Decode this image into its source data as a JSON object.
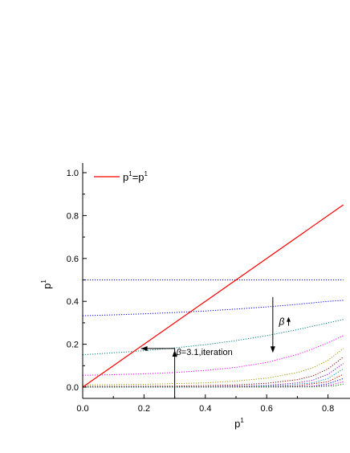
{
  "chart_data": {
    "type": "line",
    "xlabel": "p",
    "xlabel_sup": "1",
    "ylabel": "p",
    "ylabel_sup": "1",
    "xlim": [
      0,
      0.85
    ],
    "ylim": [
      -0.05,
      1.05
    ],
    "x_ticks": [
      0.0,
      0.2,
      0.4,
      0.6,
      0.8
    ],
    "x_tick_labels": [
      "0.0",
      "0.2",
      "0.4",
      "0.6",
      "0.8"
    ],
    "y_ticks": [
      0.0,
      0.2,
      0.4,
      0.6,
      0.8,
      1.0
    ],
    "y_tick_labels": [
      "0.0",
      "0.2",
      "0.4",
      "0.6",
      "0.8",
      "1.0"
    ],
    "legend": {
      "placement": "top-left",
      "entry": {
        "base": "p",
        "sup1": "1",
        "eq": "=p",
        "sup2": "1",
        "color": "#ff0000"
      }
    },
    "identity_line": {
      "color": "#ff0000",
      "x": [
        0,
        0.85
      ],
      "y": [
        0,
        0.85
      ]
    },
    "series": [
      {
        "color": "#0000cc",
        "x": [
          0,
          0.2,
          0.4,
          0.6,
          0.7,
          0.8,
          0.85
        ],
        "y": [
          0.5,
          0.5,
          0.5,
          0.5,
          0.5,
          0.5,
          0.5
        ]
      },
      {
        "color": "#0000ff",
        "x": [
          0,
          0.1,
          0.2,
          0.3,
          0.4,
          0.5,
          0.6,
          0.7,
          0.8,
          0.85
        ],
        "y": [
          0.333,
          0.337,
          0.342,
          0.348,
          0.355,
          0.364,
          0.374,
          0.386,
          0.4,
          0.405
        ]
      },
      {
        "color": "#008080",
        "x": [
          0,
          0.1,
          0.2,
          0.3,
          0.4,
          0.5,
          0.6,
          0.7,
          0.8,
          0.85
        ],
        "y": [
          0.151,
          0.16,
          0.17,
          0.183,
          0.198,
          0.217,
          0.24,
          0.268,
          0.3,
          0.315
        ]
      },
      {
        "color": "#ff00ff",
        "x": [
          0,
          0.1,
          0.2,
          0.3,
          0.4,
          0.5,
          0.6,
          0.7,
          0.75,
          0.8,
          0.85
        ],
        "y": [
          0.055,
          0.058,
          0.062,
          0.068,
          0.078,
          0.092,
          0.115,
          0.152,
          0.178,
          0.207,
          0.24
        ]
      },
      {
        "color": "#999900",
        "x": [
          0,
          0.2,
          0.4,
          0.5,
          0.6,
          0.7,
          0.75,
          0.8,
          0.85
        ],
        "y": [
          0.01,
          0.013,
          0.02,
          0.028,
          0.042,
          0.068,
          0.09,
          0.125,
          0.18
        ]
      },
      {
        "color": "#800000",
        "x": [
          0,
          0.3,
          0.5,
          0.6,
          0.7,
          0.75,
          0.8,
          0.85
        ],
        "y": [
          0.003,
          0.005,
          0.01,
          0.018,
          0.035,
          0.052,
          0.085,
          0.14
        ]
      },
      {
        "color": "#8800cc",
        "x": [
          0,
          0.4,
          0.6,
          0.7,
          0.75,
          0.8,
          0.85
        ],
        "y": [
          0.001,
          0.002,
          0.008,
          0.02,
          0.032,
          0.06,
          0.11
        ]
      },
      {
        "color": "#0088cc",
        "x": [
          0,
          0.5,
          0.65,
          0.75,
          0.8,
          0.85
        ],
        "y": [
          0.0,
          0.002,
          0.008,
          0.02,
          0.04,
          0.085
        ]
      },
      {
        "color": "#cc0000",
        "x": [
          0,
          0.6,
          0.7,
          0.8,
          0.85
        ],
        "y": [
          0.0,
          0.002,
          0.006,
          0.025,
          0.06
        ]
      },
      {
        "color": "#0000ff",
        "x": [
          0,
          0.65,
          0.75,
          0.8,
          0.85
        ],
        "y": [
          0.0,
          0.001,
          0.005,
          0.015,
          0.04
        ]
      },
      {
        "color": "#ff00ff",
        "x": [
          0,
          0.7,
          0.8,
          0.85
        ],
        "y": [
          0.0,
          0.001,
          0.007,
          0.025
        ]
      },
      {
        "color": "#008000",
        "x": [
          0,
          0.75,
          0.82,
          0.85
        ],
        "y": [
          0.0,
          0.001,
          0.006,
          0.014
        ]
      }
    ],
    "iteration_path": {
      "color": "#000000",
      "x": [
        0.3,
        0.3,
        0.19
      ],
      "y": [
        -0.05,
        0.18,
        0.18
      ]
    },
    "annotations": {
      "iteration_label": {
        "beta": "β",
        "text": "=3.1,iteration",
        "x": 0.305,
        "y": 0.15
      },
      "beta_label": {
        "beta": "β",
        "x": 0.64,
        "y": 0.29
      },
      "trend_arrow": {
        "x": 0.62,
        "y_from": 0.42,
        "y_to": 0.16
      }
    }
  }
}
